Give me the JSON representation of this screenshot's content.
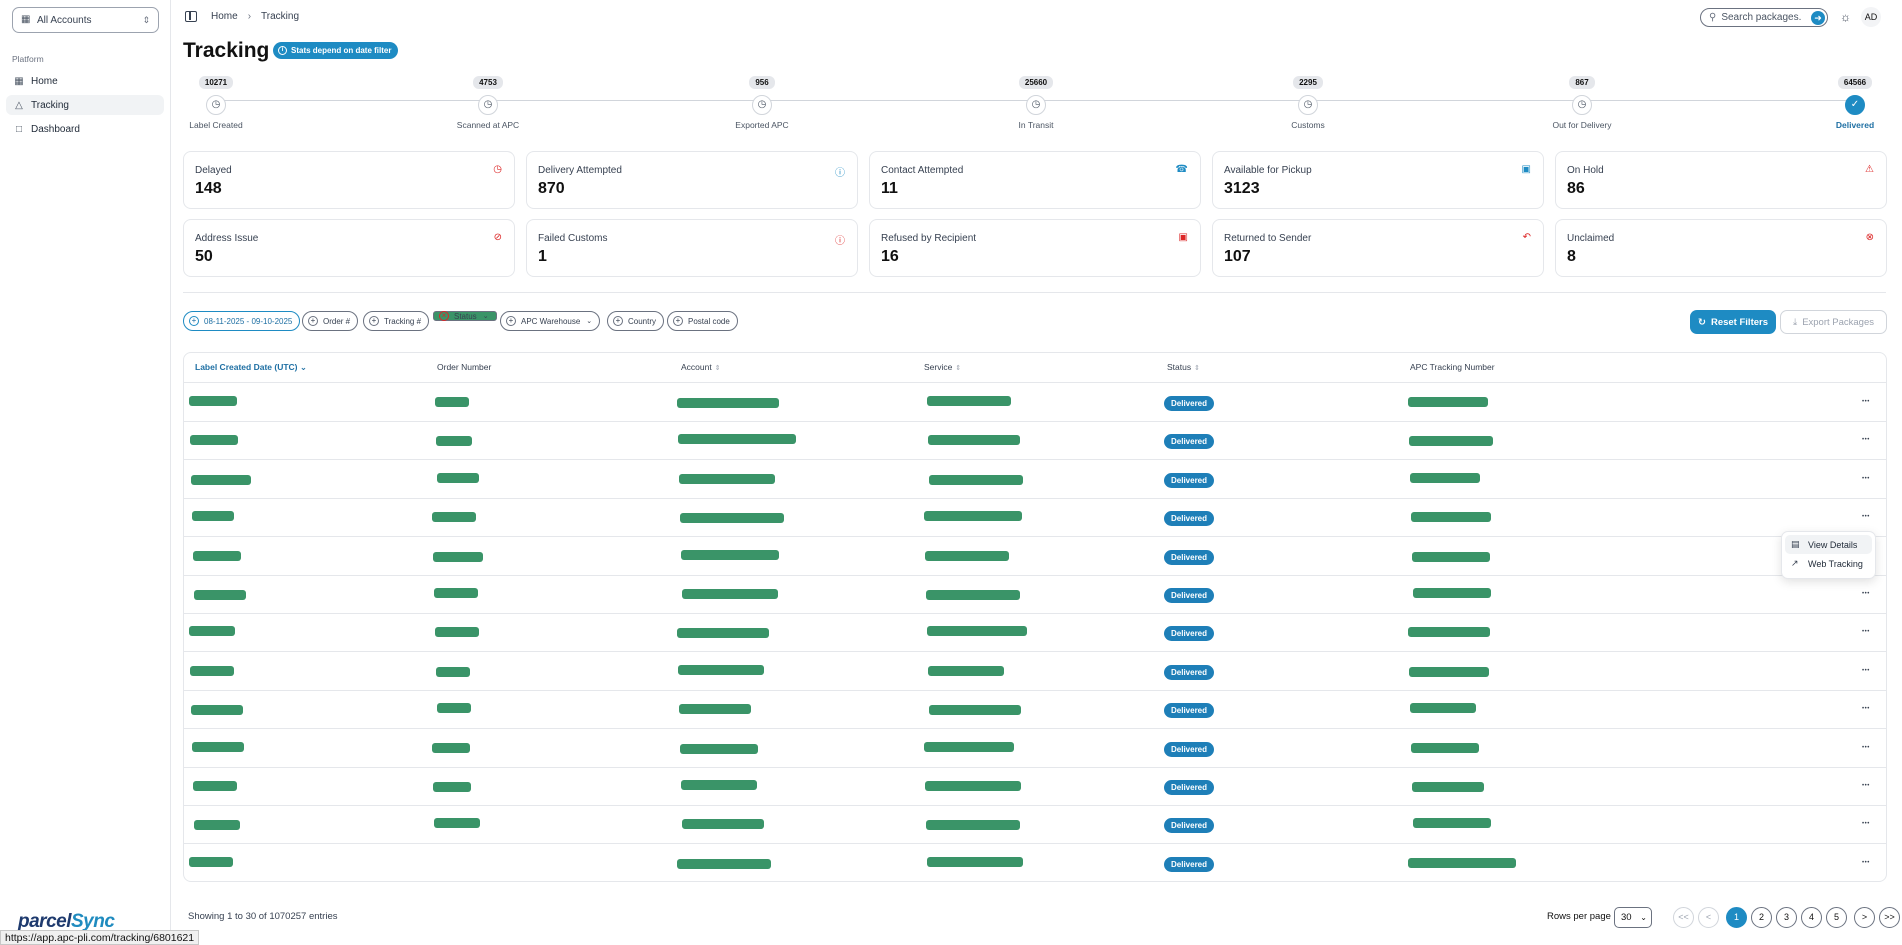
{
  "sidebar": {
    "account_selector": "All Accounts",
    "section_label": "Platform",
    "items": [
      {
        "label": "Home",
        "icon": "grid-icon"
      },
      {
        "label": "Tracking",
        "icon": "package-icon"
      },
      {
        "label": "Dashboard",
        "icon": "file-icon"
      }
    ],
    "logo": {
      "part1": "parcel",
      "part2": "Sync"
    }
  },
  "header": {
    "breadcrumb": [
      "Home",
      "Tracking"
    ],
    "search_placeholder": "Search packages...",
    "avatar": "AD"
  },
  "page": {
    "title": "Tracking",
    "stats_badge": "Stats depend on date filter"
  },
  "stepper": [
    {
      "count": "10271",
      "label": "Label Created"
    },
    {
      "count": "4753",
      "label": "Scanned at APC"
    },
    {
      "count": "956",
      "label": "Exported APC"
    },
    {
      "count": "25660",
      "label": "In Transit"
    },
    {
      "count": "2295",
      "label": "Customs"
    },
    {
      "count": "867",
      "label": "Out for Delivery"
    },
    {
      "count": "64566",
      "label": "Delivered"
    }
  ],
  "cards": [
    {
      "label": "Delayed",
      "value": "148",
      "icon": "clock-icon",
      "color": "#dc2626"
    },
    {
      "label": "Delivery Attempted",
      "value": "870",
      "icon": "help-circle-icon",
      "color": "#1e8bc3"
    },
    {
      "label": "Contact Attempted",
      "value": "11",
      "icon": "phone-icon",
      "color": "#1e8bc3"
    },
    {
      "label": "Available for Pickup",
      "value": "3123",
      "icon": "box-icon",
      "color": "#1e8bc3"
    },
    {
      "label": "On Hold",
      "value": "86",
      "icon": "warning-icon",
      "color": "#dc2626"
    },
    {
      "label": "Address Issue",
      "value": "50",
      "icon": "map-pin-off-icon",
      "color": "#dc2626"
    },
    {
      "label": "Failed Customs",
      "value": "1",
      "icon": "shield-alert-icon",
      "color": "#dc2626"
    },
    {
      "label": "Refused by Recipient",
      "value": "16",
      "icon": "package-x-icon",
      "color": "#dc2626"
    },
    {
      "label": "Returned to Sender",
      "value": "107",
      "icon": "undo-icon",
      "color": "#dc2626"
    },
    {
      "label": "Unclaimed",
      "value": "8",
      "icon": "x-circle-icon",
      "color": "#dc2626"
    }
  ],
  "filters": {
    "date_range": "08-11-2025 - 09-10-2025",
    "order": "Order #",
    "tracking": "Tracking #",
    "status": "Status",
    "warehouse": "APC Warehouse",
    "country": "Country",
    "postal": "Postal code",
    "reset": "Reset Filters",
    "export": "Export Packages"
  },
  "table": {
    "columns": [
      "Label Created Date (UTC)",
      "Order Number",
      "Account",
      "Service",
      "Status",
      "APC Tracking Number"
    ],
    "row_status": "Delivered",
    "row_count": 13
  },
  "context_menu": [
    "View Details",
    "Web Tracking"
  ],
  "footer": {
    "showing": "Showing 1 to 30 of 1070257 entries",
    "rows_per_page_label": "Rows per page",
    "rows_per_page": "30",
    "pages": [
      "1",
      "2",
      "3",
      "4",
      "5"
    ],
    "first": "<<",
    "prev": "<",
    "next": ">",
    "last": ">>"
  },
  "browser_status_url": "https://app.apc-pli.com/tracking/6801621",
  "colors": {
    "accent": "#1e8bc3",
    "redaction": "#3a9468"
  }
}
